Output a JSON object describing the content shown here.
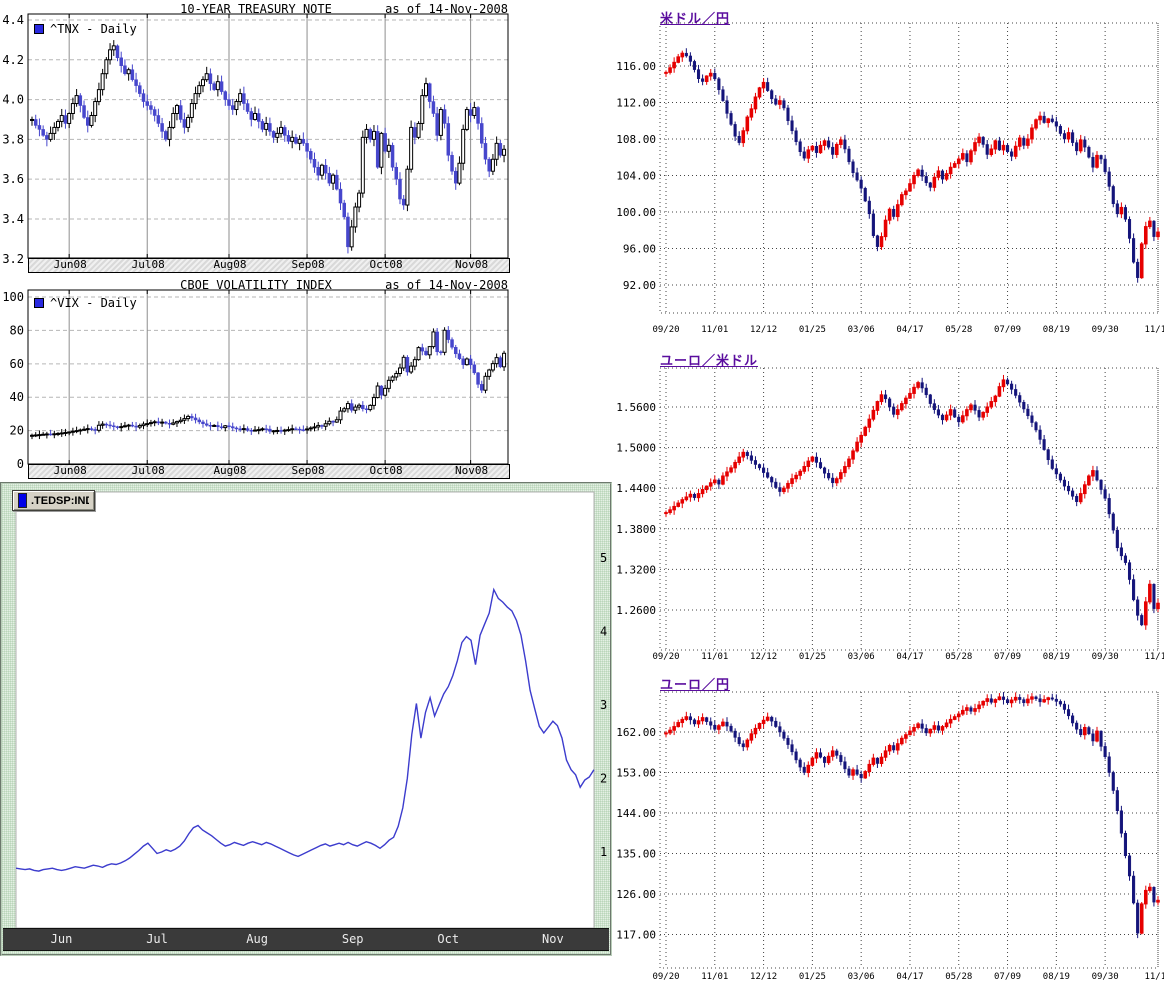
{
  "page": {
    "background": "#ffffff"
  },
  "chart_data": [
    {
      "name": "10y-treasury-note",
      "type": "candlestick",
      "title": "10-YEAR TREASURY NOTE",
      "as_of": "as of 14-Nov-2008",
      "legend": "^TNX - Daily",
      "ylim": [
        3.2,
        4.4
      ],
      "y_tick_values": [
        4.4,
        4.2,
        4.0,
        3.8,
        3.6,
        3.4,
        3.2
      ],
      "y_tick_labels": [
        "4.4",
        "4.2",
        "4.0",
        "3.8",
        "3.6",
        "3.4",
        "3.2"
      ],
      "x_tick_labels": [
        "Jun08",
        "Jul08",
        "Aug08",
        "Sep08",
        "Oct08",
        "Nov08"
      ],
      "x_tick_indices": [
        10,
        31,
        53,
        74,
        95,
        118
      ],
      "colors": {
        "up": "#ffffff",
        "up_stroke": "#000000",
        "down": "#4646cc"
      },
      "closes": [
        3.9,
        3.87,
        3.85,
        3.82,
        3.8,
        3.83,
        3.86,
        3.89,
        3.92,
        3.88,
        3.93,
        3.98,
        4.02,
        3.97,
        3.91,
        3.87,
        3.92,
        3.99,
        4.05,
        4.13,
        4.2,
        4.25,
        4.27,
        4.21,
        4.17,
        4.13,
        4.15,
        4.1,
        4.07,
        4.03,
        3.99,
        3.97,
        3.95,
        3.92,
        3.88,
        3.84,
        3.8,
        3.86,
        3.93,
        3.97,
        3.9,
        3.86,
        3.91,
        3.98,
        4.03,
        4.07,
        4.1,
        4.13,
        4.08,
        4.05,
        4.09,
        4.04,
        4.0,
        3.97,
        3.95,
        3.99,
        4.03,
        3.98,
        3.94,
        3.9,
        3.93,
        3.89,
        3.85,
        3.88,
        3.84,
        3.81,
        3.83,
        3.86,
        3.82,
        3.79,
        3.81,
        3.78,
        3.8,
        3.78,
        3.74,
        3.7,
        3.66,
        3.62,
        3.67,
        3.63,
        3.58,
        3.62,
        3.55,
        3.48,
        3.41,
        3.26,
        3.36,
        3.46,
        3.53,
        3.81,
        3.85,
        3.8,
        3.84,
        3.66,
        3.83,
        3.74,
        3.77,
        3.66,
        3.6,
        3.5,
        3.47,
        3.65,
        3.86,
        3.81,
        3.88,
        4.02,
        4.08,
        3.99,
        3.93,
        3.82,
        3.95,
        3.88,
        3.72,
        3.64,
        3.58,
        3.68,
        3.85,
        3.95,
        3.92,
        3.96,
        3.88,
        3.78,
        3.7,
        3.64,
        3.7,
        3.78,
        3.72,
        3.75
      ]
    },
    {
      "name": "cboe-volatility-index",
      "type": "candlestick",
      "title": "CBOE VOLATILITY INDEX",
      "as_of": "as of 14-Nov-2008",
      "legend": "^VIX - Daily",
      "ylim": [
        0,
        100
      ],
      "y_tick_values": [
        100,
        80,
        60,
        40,
        20,
        0
      ],
      "y_tick_labels": [
        "100",
        "80",
        "60",
        "40",
        "20",
        "0"
      ],
      "x_tick_labels": [
        "Jun08",
        "Jul08",
        "Aug08",
        "Sep08",
        "Oct08",
        "Nov08"
      ],
      "x_tick_indices": [
        10,
        31,
        53,
        74,
        95,
        118
      ],
      "colors": {
        "up": "#ffffff",
        "up_stroke": "#000000",
        "down": "#4646cc"
      },
      "closes": [
        17.2,
        17.4,
        17.6,
        17.8,
        18.0,
        17.8,
        18.1,
        18.3,
        18.6,
        18.9,
        19.2,
        19.6,
        20.0,
        20.4,
        20.8,
        21.2,
        20.7,
        20.2,
        23.2,
        23.9,
        23.4,
        22.9,
        22.4,
        21.9,
        22.4,
        22.9,
        23.3,
        22.7,
        22.1,
        23.0,
        23.9,
        24.2,
        24.8,
        25.3,
        24.6,
        25.1,
        24.4,
        23.8,
        24.6,
        25.4,
        26.2,
        27.2,
        28.5,
        27.6,
        26.4,
        25.2,
        24.1,
        23.2,
        22.7,
        23.1,
        22.3,
        21.8,
        22.9,
        22.4,
        21.6,
        21.1,
        20.7,
        21.2,
        20.2,
        19.9,
        20.3,
        20.6,
        21.1,
        20.9,
        19.6,
        19.9,
        20.1,
        19.7,
        20.3,
        20.6,
        21.1,
        20.9,
        20.6,
        20.4,
        21.0,
        21.6,
        22.2,
        23.1,
        22.6,
        24.1,
        25.6,
        25.1,
        26.5,
        31.7,
        33.1,
        36.2,
        32.2,
        34.1,
        35.2,
        33.1,
        32.6,
        35.1,
        39.8,
        46.7,
        41.2,
        45.3,
        50.1,
        52.1,
        54.2,
        57.5,
        63.9,
        55.1,
        58.6,
        62.5,
        69.7,
        67.6,
        65.4,
        70.3,
        79.1,
        67.2,
        66.9,
        80.1,
        74.5,
        69.9,
        66.0,
        63.0,
        59.5,
        62.9,
        59.4,
        54.6,
        47.7,
        44.2,
        52.5,
        56.3,
        60.1,
        63.7,
        58.2,
        66.3
      ]
    },
    {
      "name": "ted-spread",
      "type": "line",
      "legend": ".TEDSP:IND",
      "ylim": [
        0,
        5.9
      ],
      "y_tick_values": [
        5,
        4,
        3,
        2,
        1
      ],
      "y_tick_labels": [
        "5",
        "4",
        "3",
        "2",
        "1"
      ],
      "x_tick_labels": [
        "Jun",
        "Jul",
        "Aug",
        "Sep",
        "Oct",
        "Nov"
      ],
      "x_tick_indices": [
        10,
        31,
        53,
        74,
        95,
        118
      ],
      "colors": {
        "line": "#3c3ccd"
      },
      "values": [
        0.78,
        0.77,
        0.76,
        0.77,
        0.75,
        0.74,
        0.76,
        0.77,
        0.78,
        0.76,
        0.75,
        0.76,
        0.78,
        0.8,
        0.79,
        0.78,
        0.8,
        0.82,
        0.81,
        0.79,
        0.82,
        0.84,
        0.83,
        0.85,
        0.88,
        0.92,
        0.97,
        1.02,
        1.08,
        1.12,
        1.05,
        0.98,
        1.0,
        1.03,
        1.01,
        1.04,
        1.08,
        1.15,
        1.25,
        1.33,
        1.36,
        1.3,
        1.26,
        1.22,
        1.17,
        1.12,
        1.08,
        1.1,
        1.13,
        1.11,
        1.09,
        1.12,
        1.14,
        1.12,
        1.1,
        1.13,
        1.11,
        1.08,
        1.05,
        1.02,
        0.99,
        0.96,
        0.94,
        0.97,
        1.0,
        1.03,
        1.06,
        1.09,
        1.11,
        1.08,
        1.1,
        1.12,
        1.1,
        1.13,
        1.1,
        1.08,
        1.11,
        1.14,
        1.12,
        1.09,
        1.05,
        1.1,
        1.16,
        1.2,
        1.35,
        1.6,
        2.0,
        2.6,
        3.02,
        2.55,
        2.9,
        3.1,
        2.85,
        3.0,
        3.15,
        3.25,
        3.4,
        3.6,
        3.85,
        3.93,
        3.88,
        3.55,
        3.95,
        4.1,
        4.25,
        4.57,
        4.45,
        4.4,
        4.33,
        4.28,
        4.15,
        3.95,
        3.6,
        3.2,
        2.95,
        2.71,
        2.62,
        2.7,
        2.78,
        2.72,
        2.55,
        2.25,
        2.12,
        2.05,
        1.88,
        1.98,
        2.02,
        2.12
      ]
    },
    {
      "name": "usd-jpy",
      "type": "candlestick",
      "title": "米ドル／円",
      "ylim": [
        92,
        116
      ],
      "y_tick_values": [
        116,
        112,
        108,
        104,
        100,
        96,
        92
      ],
      "y_tick_labels": [
        "116.00",
        "112.00",
        "108.00",
        "104.00",
        "100.00",
        "96.00",
        "92.00"
      ],
      "x_tick_labels": [
        "09/20",
        "11/01",
        "12/12",
        "01/25",
        "03/06",
        "04/17",
        "05/28",
        "07/09",
        "08/19",
        "09/30",
        "11/10"
      ],
      "x_tick_indices": [
        0,
        12,
        24,
        36,
        48,
        60,
        72,
        84,
        96,
        108,
        121
      ],
      "colors": {
        "up": "#e60000",
        "down": "#14147a"
      },
      "closes": [
        115.3,
        115.8,
        116.4,
        117.0,
        117.4,
        117.1,
        116.5,
        115.6,
        114.6,
        114.3,
        114.9,
        115.2,
        114.6,
        113.4,
        112.2,
        110.8,
        109.6,
        108.3,
        107.6,
        108.9,
        110.4,
        111.3,
        112.6,
        113.6,
        114.2,
        113.3,
        112.4,
        111.8,
        112.2,
        111.4,
        110.0,
        108.9,
        107.7,
        106.6,
        105.9,
        106.8,
        107.2,
        106.5,
        107.3,
        107.8,
        107.1,
        106.3,
        107.4,
        107.9,
        106.9,
        105.5,
        104.3,
        103.5,
        102.6,
        101.2,
        99.8,
        97.4,
        96.2,
        97.3,
        99.1,
        100.3,
        99.5,
        100.8,
        101.9,
        102.3,
        103.1,
        104.0,
        104.6,
        103.9,
        103.2,
        102.7,
        103.8,
        104.5,
        103.6,
        104.2,
        104.9,
        105.3,
        105.8,
        106.4,
        105.5,
        106.7,
        107.6,
        108.2,
        107.4,
        106.3,
        106.9,
        107.8,
        106.8,
        107.3,
        106.6,
        106.1,
        107.2,
        108.1,
        107.3,
        108.0,
        109.2,
        110.1,
        110.5,
        109.8,
        110.2,
        109.9,
        109.4,
        108.6,
        108.0,
        108.7,
        107.6,
        106.7,
        107.9,
        107.1,
        106.0,
        104.9,
        106.2,
        105.8,
        104.4,
        102.8,
        100.9,
        99.8,
        100.5,
        99.2,
        97.1,
        94.5,
        92.8,
        96.5,
        98.4,
        99.0,
        97.3,
        97.8
      ]
    },
    {
      "name": "eur-usd",
      "type": "candlestick",
      "title": "ユーロ／米ドル",
      "ylim": [
        1.26,
        1.56
      ],
      "y_tick_values": [
        1.56,
        1.5,
        1.44,
        1.38,
        1.32,
        1.26
      ],
      "y_tick_labels": [
        "1.5600",
        "1.5000",
        "1.4400",
        "1.3800",
        "1.3200",
        "1.2600"
      ],
      "x_tick_labels": [
        "09/20",
        "11/01",
        "12/12",
        "01/25",
        "03/06",
        "04/17",
        "05/28",
        "07/09",
        "08/19",
        "09/30",
        "11/10"
      ],
      "x_tick_indices": [
        0,
        12,
        24,
        36,
        48,
        60,
        72,
        84,
        96,
        108,
        121
      ],
      "colors": {
        "up": "#e60000",
        "down": "#14147a"
      },
      "closes": [
        1.404,
        1.408,
        1.413,
        1.418,
        1.423,
        1.427,
        1.431,
        1.426,
        1.432,
        1.438,
        1.443,
        1.448,
        1.452,
        1.446,
        1.458,
        1.464,
        1.47,
        1.478,
        1.486,
        1.493,
        1.488,
        1.481,
        1.475,
        1.47,
        1.463,
        1.456,
        1.449,
        1.441,
        1.435,
        1.44,
        1.447,
        1.454,
        1.459,
        1.465,
        1.472,
        1.48,
        1.486,
        1.478,
        1.47,
        1.462,
        1.455,
        1.448,
        1.454,
        1.463,
        1.472,
        1.483,
        1.495,
        1.508,
        1.518,
        1.53,
        1.542,
        1.555,
        1.568,
        1.578,
        1.572,
        1.56,
        1.549,
        1.556,
        1.565,
        1.573,
        1.58,
        1.589,
        1.596,
        1.588,
        1.578,
        1.565,
        1.556,
        1.548,
        1.541,
        1.548,
        1.556,
        1.545,
        1.538,
        1.547,
        1.556,
        1.563,
        1.555,
        1.545,
        1.552,
        1.56,
        1.568,
        1.576,
        1.59,
        1.6,
        1.594,
        1.586,
        1.577,
        1.567,
        1.557,
        1.547,
        1.537,
        1.526,
        1.512,
        1.497,
        1.482,
        1.469,
        1.461,
        1.452,
        1.443,
        1.436,
        1.428,
        1.42,
        1.432,
        1.445,
        1.458,
        1.466,
        1.452,
        1.438,
        1.425,
        1.402,
        1.378,
        1.352,
        1.34,
        1.33,
        1.305,
        1.275,
        1.252,
        1.238,
        1.272,
        1.298,
        1.262,
        1.27
      ]
    },
    {
      "name": "eur-jpy",
      "type": "candlestick",
      "title": "ユーロ／円",
      "ylim": [
        117,
        162
      ],
      "y_tick_values": [
        162,
        153,
        144,
        135,
        126,
        117
      ],
      "y_tick_labels": [
        "162.00",
        "153.00",
        "144.00",
        "135.00",
        "126.00",
        "117.00"
      ],
      "x_tick_labels": [
        "09/20",
        "11/01",
        "12/12",
        "01/25",
        "03/06",
        "04/17",
        "05/28",
        "07/09",
        "08/19",
        "09/30",
        "11/10"
      ],
      "x_tick_indices": [
        0,
        12,
        24,
        36,
        48,
        60,
        72,
        84,
        96,
        108,
        121
      ],
      "colors": {
        "up": "#e60000",
        "down": "#14147a"
      },
      "closes": [
        161.8,
        162.4,
        163.2,
        164.1,
        164.8,
        165.4,
        164.7,
        163.8,
        164.5,
        165.2,
        164.3,
        163.5,
        162.6,
        163.4,
        164.2,
        163.3,
        162.2,
        160.8,
        159.4,
        158.7,
        160.2,
        161.6,
        162.8,
        163.9,
        164.6,
        165.3,
        164.4,
        163.2,
        162.0,
        160.6,
        159.2,
        157.6,
        155.8,
        154.2,
        153.0,
        154.6,
        156.2,
        157.4,
        156.4,
        155.2,
        156.6,
        157.8,
        156.8,
        155.4,
        153.8,
        152.4,
        153.6,
        152.6,
        151.8,
        153.2,
        154.8,
        156.2,
        155.0,
        156.4,
        157.8,
        159.0,
        158.0,
        159.4,
        160.6,
        161.4,
        162.2,
        163.0,
        163.8,
        162.8,
        161.8,
        162.6,
        163.4,
        162.4,
        163.2,
        164.0,
        164.8,
        165.4,
        166.0,
        166.8,
        167.4,
        166.6,
        167.2,
        168.0,
        168.8,
        169.4,
        168.6,
        169.2,
        169.8,
        169.2,
        168.5,
        169.1,
        169.7,
        169.2,
        168.5,
        169.3,
        169.8,
        169.4,
        168.7,
        169.2,
        169.6,
        169.3,
        168.8,
        168.2,
        167.0,
        165.6,
        164.0,
        162.6,
        161.4,
        163.0,
        161.6,
        160.0,
        162.2,
        158.8,
        156.5,
        153.0,
        149.0,
        144.5,
        139.5,
        134.5,
        130.0,
        124.0,
        117.3,
        123.8,
        126.8,
        127.5,
        124.2,
        124.6
      ]
    }
  ]
}
